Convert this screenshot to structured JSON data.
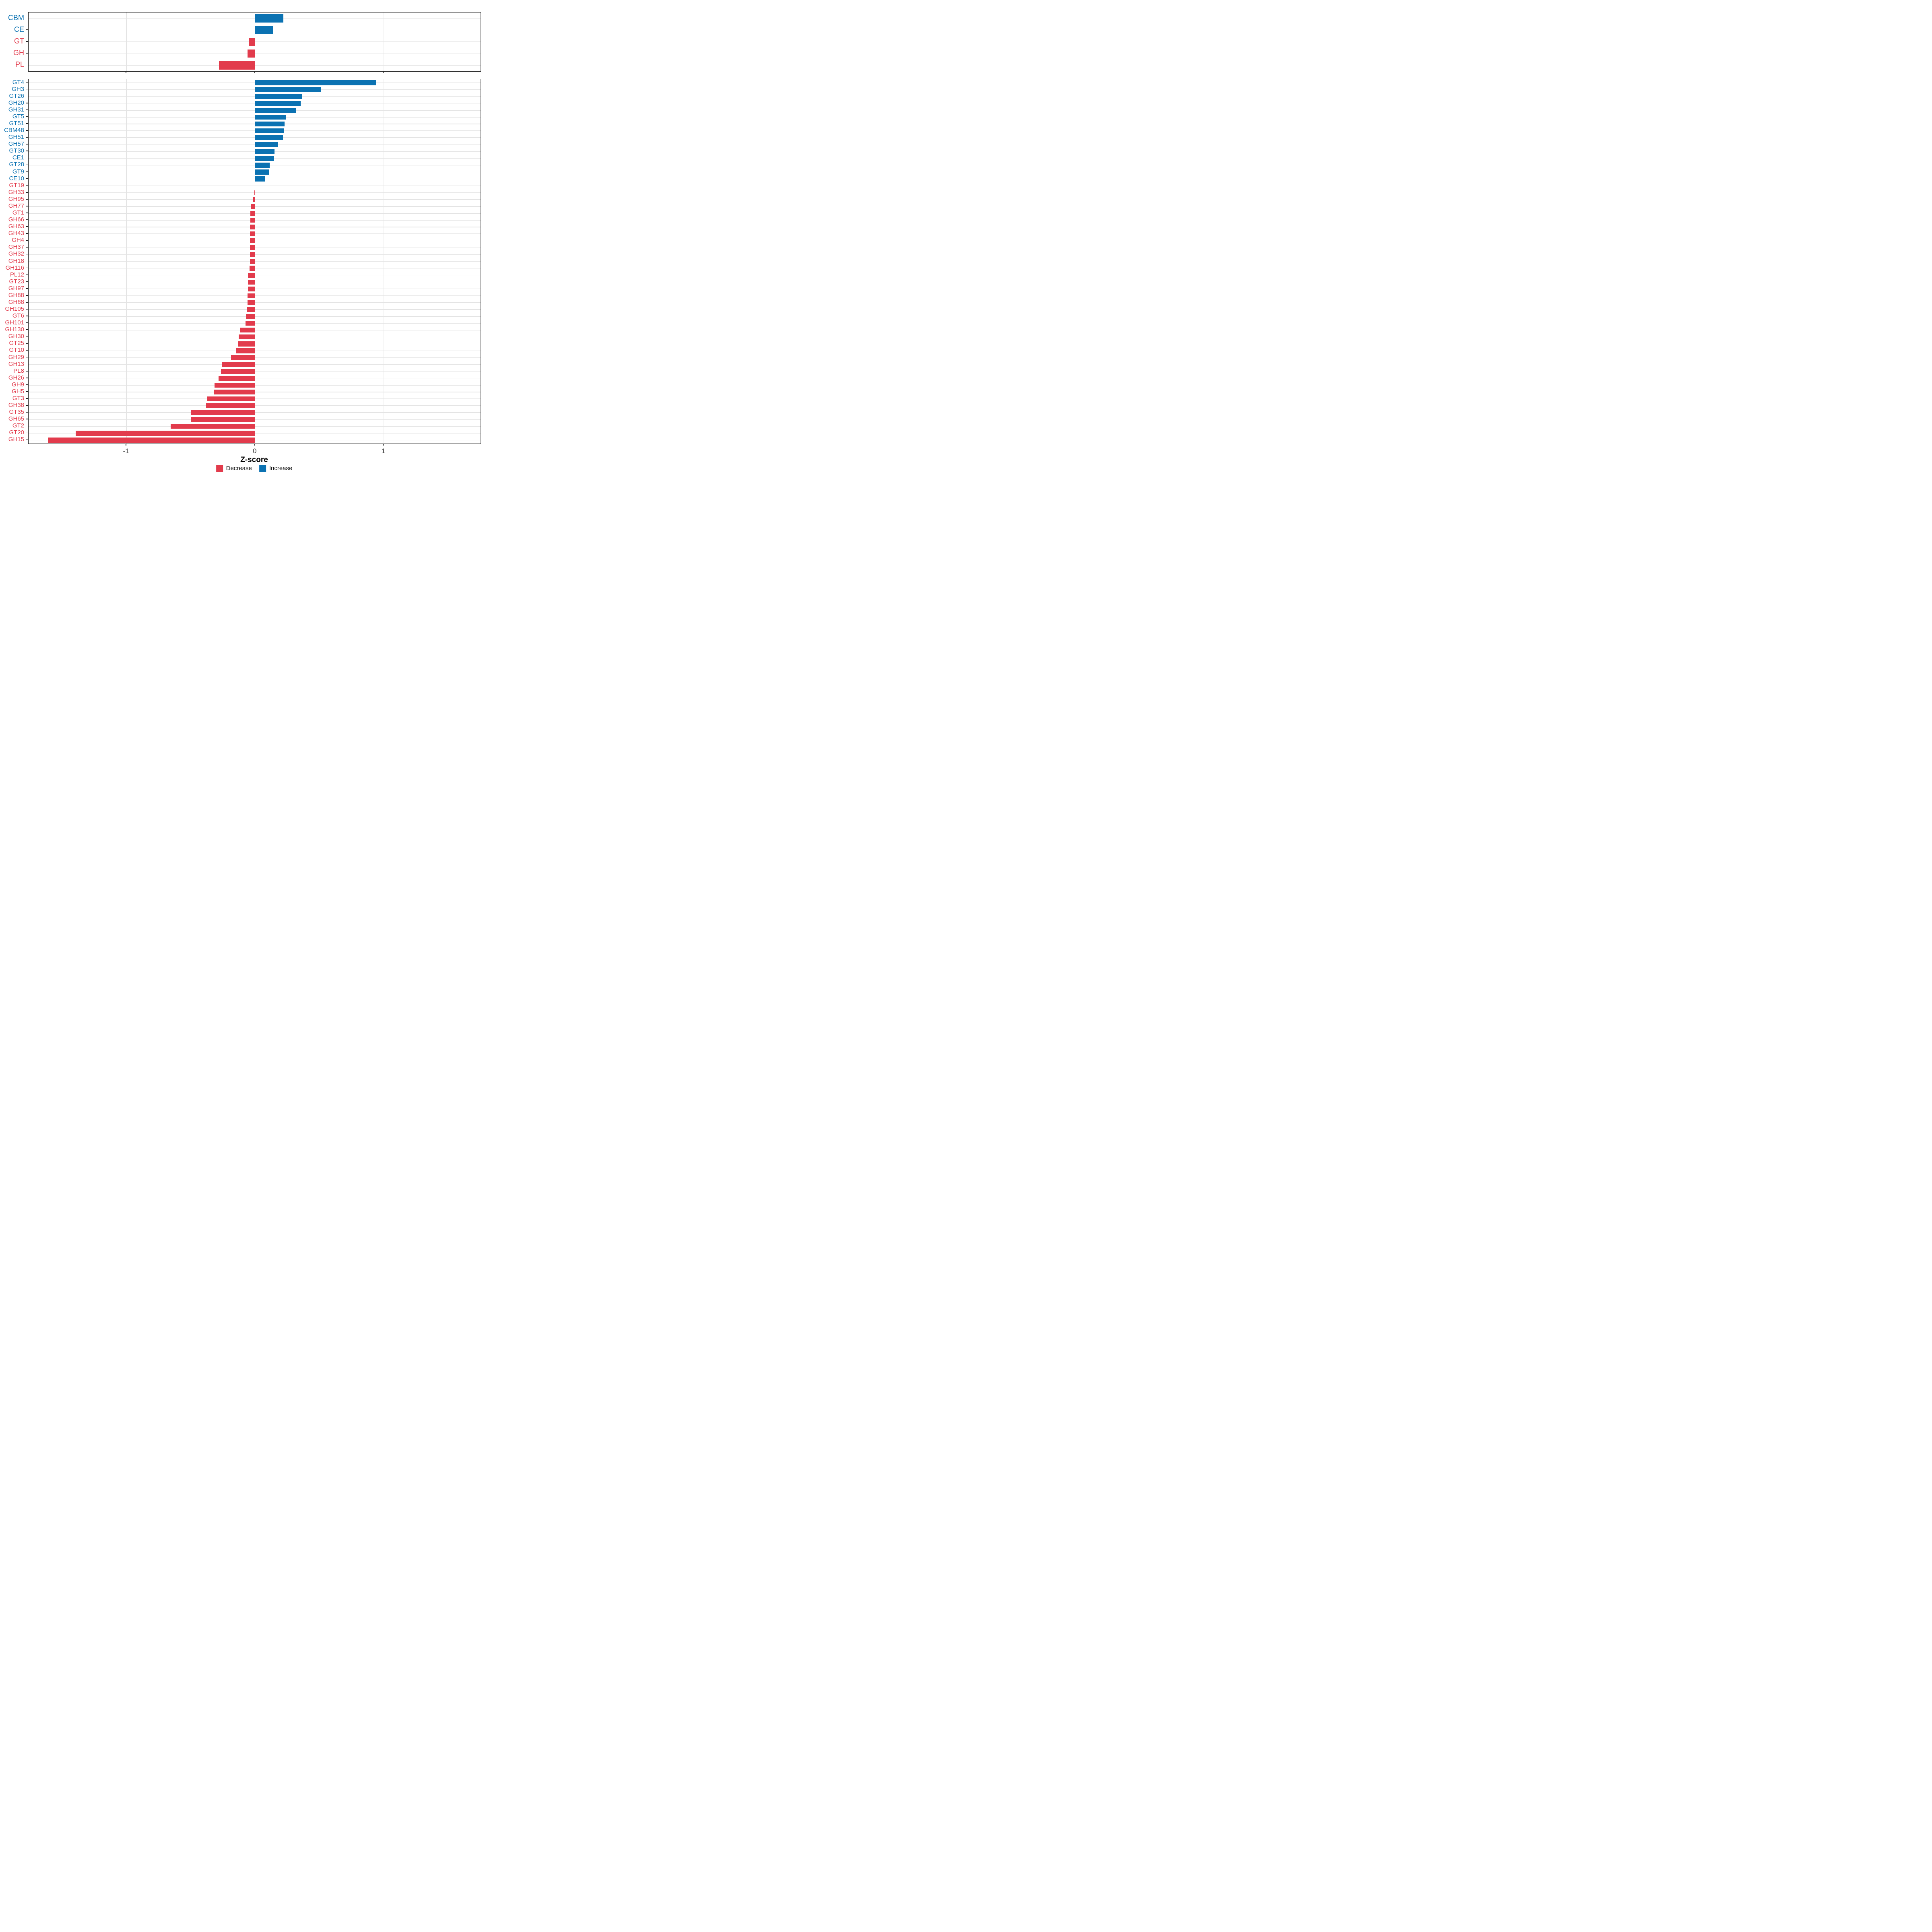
{
  "figure": {
    "xlabel": "Z-score",
    "x_tick_labels": [
      "-1",
      "0",
      "1"
    ],
    "x_tick_values": [
      -1,
      0,
      1
    ],
    "colors": {
      "increase": "#0b72b2",
      "decrease": "#e23b4c",
      "grid": "#e4e4e4",
      "border": "#111111",
      "axis_text": "#3d3d3d"
    },
    "legend": {
      "position": "bottom",
      "items": [
        {
          "label": "Decrease",
          "color_key": "decrease"
        },
        {
          "label": "Increase",
          "color_key": "increase"
        }
      ]
    }
  },
  "chart_data": [
    {
      "type": "bar",
      "orientation": "horizontal",
      "panel": "cazyme-classes",
      "title": "",
      "xlabel": "Z-score",
      "ylabel": "",
      "xlim": [
        -1.76,
        1.752
      ],
      "grid": true,
      "categories": [
        "CBM",
        "CE",
        "GT",
        "GH",
        "PL"
      ],
      "values": [
        0.22,
        0.14,
        -0.05,
        -0.06,
        -0.28
      ],
      "groups": [
        "Increase",
        "Increase",
        "Decrease",
        "Decrease",
        "Decrease"
      ]
    },
    {
      "type": "bar",
      "orientation": "horizontal",
      "panel": "cazyme-families",
      "title": "",
      "xlabel": "Z-score",
      "ylabel": "",
      "xlim": [
        -1.76,
        1.752
      ],
      "grid": true,
      "categories": [
        "GT4",
        "GH3",
        "GT26",
        "GH20",
        "GH31",
        "GT5",
        "GT51",
        "CBM48",
        "GH51",
        "GH57",
        "GT30",
        "CE1",
        "GT28",
        "GT9",
        "CE10",
        "GT19",
        "GH33",
        "GH95",
        "GH77",
        "GT1",
        "GH66",
        "GH63",
        "GH43",
        "GH4",
        "GH37",
        "GH32",
        "GH18",
        "GH116",
        "PL12",
        "GT23",
        "GH97",
        "GH88",
        "GH68",
        "GH105",
        "GT6",
        "GH101",
        "GH130",
        "GH30",
        "GT25",
        "GT10",
        "GH29",
        "GH13",
        "PL8",
        "GH26",
        "GH9",
        "GH5",
        "GT3",
        "GH38",
        "GT35",
        "GH65",
        "GT2",
        "GT20",
        "GH15"
      ],
      "values": [
        0.94,
        0.51,
        0.365,
        0.353,
        0.316,
        0.239,
        0.228,
        0.223,
        0.215,
        0.18,
        0.15,
        0.148,
        0.113,
        0.107,
        0.077,
        -0.002,
        -0.007,
        -0.014,
        -0.03,
        -0.038,
        -0.038,
        -0.039,
        -0.039,
        -0.04,
        -0.04,
        -0.041,
        -0.041,
        -0.042,
        -0.055,
        -0.056,
        -0.057,
        -0.058,
        -0.06,
        -0.061,
        -0.072,
        -0.075,
        -0.118,
        -0.127,
        -0.134,
        -0.147,
        -0.186,
        -0.255,
        -0.264,
        -0.285,
        -0.314,
        -0.318,
        -0.372,
        -0.38,
        -0.495,
        -0.499,
        -0.655,
        -1.395,
        -1.61
      ],
      "groups": [
        "Increase",
        "Increase",
        "Increase",
        "Increase",
        "Increase",
        "Increase",
        "Increase",
        "Increase",
        "Increase",
        "Increase",
        "Increase",
        "Increase",
        "Increase",
        "Increase",
        "Increase",
        "Decrease",
        "Decrease",
        "Decrease",
        "Decrease",
        "Decrease",
        "Decrease",
        "Decrease",
        "Decrease",
        "Decrease",
        "Decrease",
        "Decrease",
        "Decrease",
        "Decrease",
        "Decrease",
        "Decrease",
        "Decrease",
        "Decrease",
        "Decrease",
        "Decrease",
        "Decrease",
        "Decrease",
        "Decrease",
        "Decrease",
        "Decrease",
        "Decrease",
        "Decrease",
        "Decrease",
        "Decrease",
        "Decrease",
        "Decrease",
        "Decrease",
        "Decrease",
        "Decrease",
        "Decrease",
        "Decrease",
        "Decrease",
        "Decrease",
        "Decrease"
      ]
    }
  ]
}
